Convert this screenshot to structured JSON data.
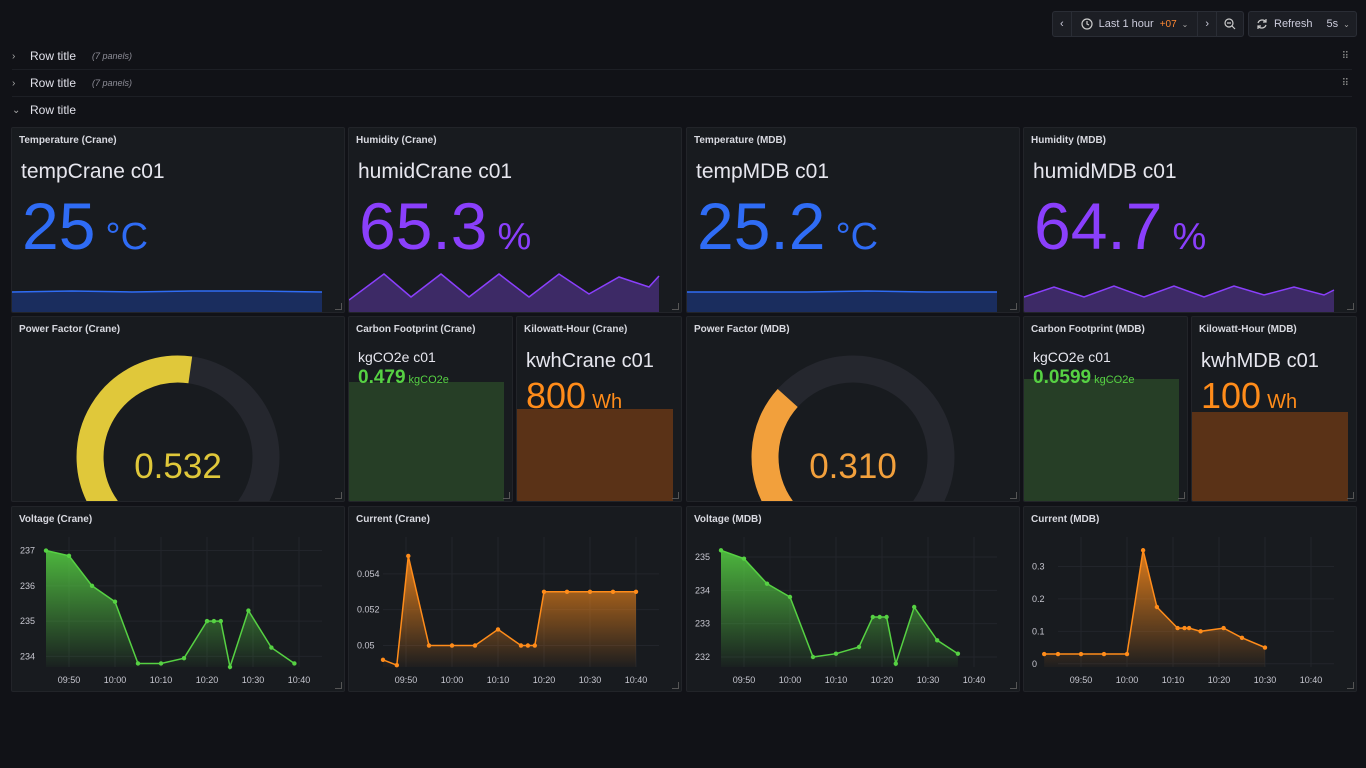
{
  "toolbar": {
    "time_range": "Last 1 hour",
    "timezone": "+07",
    "refresh_label": "Refresh",
    "interval": "5s"
  },
  "rows": [
    {
      "title": "Row title",
      "count": "(7 panels)",
      "collapsed": true
    },
    {
      "title": "Row title",
      "count": "(7 panels)",
      "collapsed": true
    },
    {
      "title": "Row title",
      "count": "",
      "collapsed": false
    }
  ],
  "stats": [
    {
      "title": "Temperature (Crane)",
      "name": "tempCrane c01",
      "value": "25",
      "unit": "°C",
      "color": "#2f6cf5"
    },
    {
      "title": "Humidity (Crane)",
      "name": "humidCrane c01",
      "value": "65.3",
      "unit": "%",
      "color": "#8a3ffc"
    },
    {
      "title": "Temperature (MDB)",
      "name": "tempMDB c01",
      "value": "25.2",
      "unit": "°C",
      "color": "#2f6cf5"
    },
    {
      "title": "Humidity (MDB)",
      "name": "humidMDB c01",
      "value": "64.7",
      "unit": "%",
      "color": "#8a3ffc"
    }
  ],
  "gauges": [
    {
      "title": "Power Factor (Crane)",
      "value": "0.532",
      "fraction": 0.532,
      "color": "#e0c83a"
    },
    {
      "title": "Power Factor (MDB)",
      "value": "0.310",
      "fraction": 0.31,
      "color": "#f2a03c"
    }
  ],
  "carbon": [
    {
      "title": "Carbon Footprint (Crane)",
      "name": "kgCO2e c01",
      "value": "0.479",
      "unit": "kgCO2e",
      "color": "#56d143"
    },
    {
      "title": "Carbon Footprint (MDB)",
      "name": "kgCO2e c01",
      "value": "0.0599",
      "unit": "kgCO2e",
      "color": "#56d143"
    }
  ],
  "kwh": [
    {
      "title": "Kilowatt-Hour (Crane)",
      "name": "kwhCrane c01",
      "value": "800",
      "unit": "Wh",
      "color": "#ff8c1a"
    },
    {
      "title": "Kilowatt-Hour (MDB)",
      "name": "kwhMDB c01",
      "value": "100",
      "unit": "Wh",
      "color": "#ff8c1a"
    }
  ],
  "chart_data": [
    {
      "type": "area",
      "title": "Voltage (Crane)",
      "color": "#56d143",
      "x_ticks": [
        "09:50",
        "10:00",
        "10:10",
        "10:20",
        "10:30",
        "10:40"
      ],
      "y_ticks": [
        234,
        235,
        236,
        237
      ],
      "ylim": [
        233.7,
        237.1
      ],
      "xlim": [
        0,
        60
      ],
      "x": [
        0,
        5,
        10,
        15,
        20,
        25,
        30,
        35,
        36.5,
        38,
        40,
        44,
        49,
        54
      ],
      "y": [
        237,
        236.85,
        236,
        235.55,
        233.8,
        233.8,
        233.95,
        235,
        235,
        235,
        233.7,
        235.3,
        234.25,
        233.8
      ]
    },
    {
      "type": "area",
      "title": "Current (Crane)",
      "color": "#ff8c1a",
      "x_ticks": [
        "09:50",
        "10:00",
        "10:10",
        "10:20",
        "10:30",
        "10:40"
      ],
      "y_ticks": [
        0.05,
        0.052,
        0.054
      ],
      "ylim": [
        0.0488,
        0.0555
      ],
      "xlim": [
        0,
        60
      ],
      "x": [
        0,
        3,
        5.5,
        10,
        15,
        20,
        25,
        30,
        31.5,
        33,
        35,
        40,
        45,
        50,
        55
      ],
      "y": [
        0.0492,
        0.0489,
        0.055,
        0.05,
        0.05,
        0.05,
        0.0509,
        0.05,
        0.05,
        0.05,
        0.053,
        0.053,
        0.053,
        0.053,
        0.053
      ]
    },
    {
      "type": "area",
      "title": "Voltage (MDB)",
      "color": "#56d143",
      "x_ticks": [
        "09:50",
        "10:00",
        "10:10",
        "10:20",
        "10:30",
        "10:40"
      ],
      "y_ticks": [
        232,
        233,
        234,
        235
      ],
      "ylim": [
        231.7,
        235.3
      ],
      "xlim": [
        0,
        60
      ],
      "x": [
        0,
        5,
        10,
        15,
        20,
        25,
        30,
        33,
        34.5,
        36,
        38,
        42,
        47,
        51.5
      ],
      "y": [
        235.2,
        234.95,
        234.2,
        233.8,
        232,
        232.1,
        232.3,
        233.2,
        233.2,
        233.2,
        231.8,
        233.5,
        232.5,
        232.1
      ]
    },
    {
      "type": "area",
      "title": "Current (MDB)",
      "color": "#ff8c1a",
      "x_ticks": [
        "09:50",
        "10:00",
        "10:10",
        "10:20",
        "10:30",
        "10:40"
      ],
      "y_ticks": [
        0,
        0.1,
        0.2,
        0.3
      ],
      "ylim": [
        -0.01,
        0.36
      ],
      "xlim": [
        0,
        60
      ],
      "x": [
        -3,
        0,
        5,
        10,
        15,
        18.5,
        21.5,
        26,
        27.5,
        28.5,
        31,
        36,
        40,
        45
      ],
      "y": [
        0.03,
        0.03,
        0.03,
        0.03,
        0.03,
        0.35,
        0.175,
        0.11,
        0.11,
        0.11,
        0.1,
        0.11,
        0.08,
        0.05
      ]
    }
  ]
}
